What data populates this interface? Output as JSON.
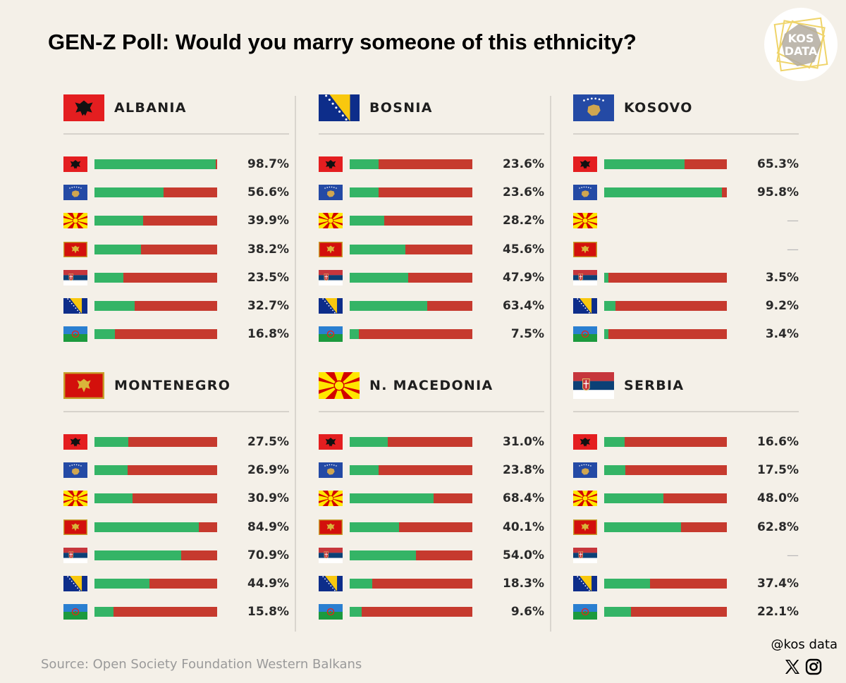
{
  "title": "GEN-Z Poll: Would you marry someone of this ethnicity?",
  "logo_text": [
    "KOS",
    "DATA"
  ],
  "source": "Source: Open Society Foundation Western Balkans",
  "handle": "@kos data",
  "icons": [
    "x-logo-icon",
    "instagram-icon"
  ],
  "colors": {
    "yes": "#34b466",
    "no": "#c63a2e",
    "background": "#f4f0e8"
  },
  "row_flags": [
    "albania",
    "kosovo",
    "macedonia",
    "montenegro",
    "serbia",
    "bosnia",
    "roma"
  ],
  "chart_data": [
    {
      "type": "bar",
      "title": "ALBANIA",
      "flag": "albania",
      "categories": [
        "albania",
        "kosovo",
        "macedonia",
        "montenegro",
        "serbia",
        "bosnia",
        "roma"
      ],
      "values": [
        98.7,
        56.6,
        39.9,
        38.2,
        23.5,
        32.7,
        16.8
      ],
      "labels": [
        "98.7%",
        "56.6%",
        "39.9%",
        "38.2%",
        "23.5%",
        "32.7%",
        "16.8%"
      ],
      "xlim": [
        0,
        100
      ]
    },
    {
      "type": "bar",
      "title": "BOSNIA",
      "flag": "bosnia",
      "categories": [
        "albania",
        "kosovo",
        "macedonia",
        "montenegro",
        "serbia",
        "bosnia",
        "roma"
      ],
      "values": [
        23.6,
        23.6,
        28.2,
        45.6,
        47.9,
        63.4,
        7.5
      ],
      "labels": [
        "23.6%",
        "23.6%",
        "28.2%",
        "45.6%",
        "47.9%",
        "63.4%",
        "7.5%"
      ],
      "xlim": [
        0,
        100
      ]
    },
    {
      "type": "bar",
      "title": "KOSOVO",
      "flag": "kosovo",
      "categories": [
        "albania",
        "kosovo",
        "macedonia",
        "montenegro",
        "serbia",
        "bosnia",
        "roma"
      ],
      "values": [
        65.3,
        95.8,
        null,
        null,
        3.5,
        9.2,
        3.4
      ],
      "labels": [
        "65.3%",
        "95.8%",
        "—",
        "—",
        "3.5%",
        "9.2%",
        "3.4%"
      ],
      "xlim": [
        0,
        100
      ]
    },
    {
      "type": "bar",
      "title": "MONTENEGRO",
      "flag": "montenegro",
      "categories": [
        "albania",
        "kosovo",
        "macedonia",
        "montenegro",
        "serbia",
        "bosnia",
        "roma"
      ],
      "values": [
        27.5,
        26.9,
        30.9,
        84.9,
        70.9,
        44.9,
        15.8
      ],
      "labels": [
        "27.5%",
        "26.9%",
        "30.9%",
        "84.9%",
        "70.9%",
        "44.9%",
        "15.8%"
      ],
      "xlim": [
        0,
        100
      ]
    },
    {
      "type": "bar",
      "title": "N. MACEDONIA",
      "flag": "macedonia",
      "categories": [
        "albania",
        "kosovo",
        "macedonia",
        "montenegro",
        "serbia",
        "bosnia",
        "roma"
      ],
      "values": [
        31.0,
        23.8,
        68.4,
        40.1,
        54.0,
        18.3,
        9.6
      ],
      "labels": [
        "31.0%",
        "23.8%",
        "68.4%",
        "40.1%",
        "54.0%",
        "18.3%",
        "9.6%"
      ],
      "xlim": [
        0,
        100
      ]
    },
    {
      "type": "bar",
      "title": "SERBIA",
      "flag": "serbia",
      "categories": [
        "albania",
        "kosovo",
        "macedonia",
        "montenegro",
        "serbia",
        "bosnia",
        "roma"
      ],
      "values": [
        16.6,
        17.5,
        48.0,
        62.8,
        null,
        37.4,
        22.1
      ],
      "labels": [
        "16.6%",
        "17.5%",
        "48.0%",
        "62.8%",
        "—",
        "37.4%",
        "22.1%"
      ],
      "xlim": [
        0,
        100
      ]
    }
  ]
}
